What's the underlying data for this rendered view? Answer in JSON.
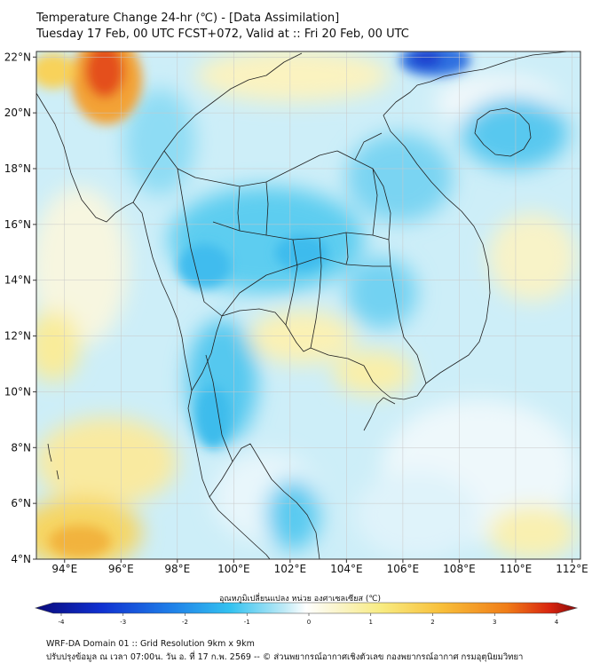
{
  "title": {
    "line1": "Temperature Change 24-hr (℃) - [Data Assimilation]",
    "line2": "Tuesday 17 Feb, 00 UTC FCST+072, Valid at :: Fri 20 Feb, 00 UTC"
  },
  "map": {
    "lon_ticks": [
      "94°E",
      "96°E",
      "98°E",
      "100°E",
      "102°E",
      "104°E",
      "106°E",
      "108°E",
      "110°E",
      "112°E"
    ],
    "lat_ticks": [
      "22°N",
      "20°N",
      "18°N",
      "16°N",
      "14°N",
      "12°N",
      "10°N",
      "8°N",
      "6°N",
      "4°N"
    ],
    "lon_range": [
      93,
      112.3
    ],
    "lat_range": [
      4,
      22.2
    ],
    "grid": true
  },
  "colorbar": {
    "label": "อุณหภูมิเปลี่ยนแปลง หน่วย องศาเซลเซียส (℃)",
    "ticks": [
      "-4",
      "-3",
      "-2",
      "-1",
      "0",
      "1",
      "2",
      "3",
      "4"
    ],
    "range": [
      -4,
      4
    ],
    "colors": [
      "#0a0a7a",
      "#1030d0",
      "#1f7fe8",
      "#33c2f0",
      "#8fe0f5",
      "#e9f6fb",
      "#fbf6d2",
      "#f8eb80",
      "#f8bf3a",
      "#f07d18",
      "#d8250f",
      "#8a0a0a"
    ]
  },
  "footer": {
    "line1": "WRF-DA Domain 01 :: Grid Resolution 9km x 9km",
    "line2": "ปรับปรุงข้อมูล ณ เวลา 07:00น. วัน อ. ที่ 17 ก.พ. 2569 -- © ส่วนพยากรณ์อากาศเชิงตัวเลข กองพยากรณ์อากาศ กรมอุตุนิยมวิทยา"
  }
}
